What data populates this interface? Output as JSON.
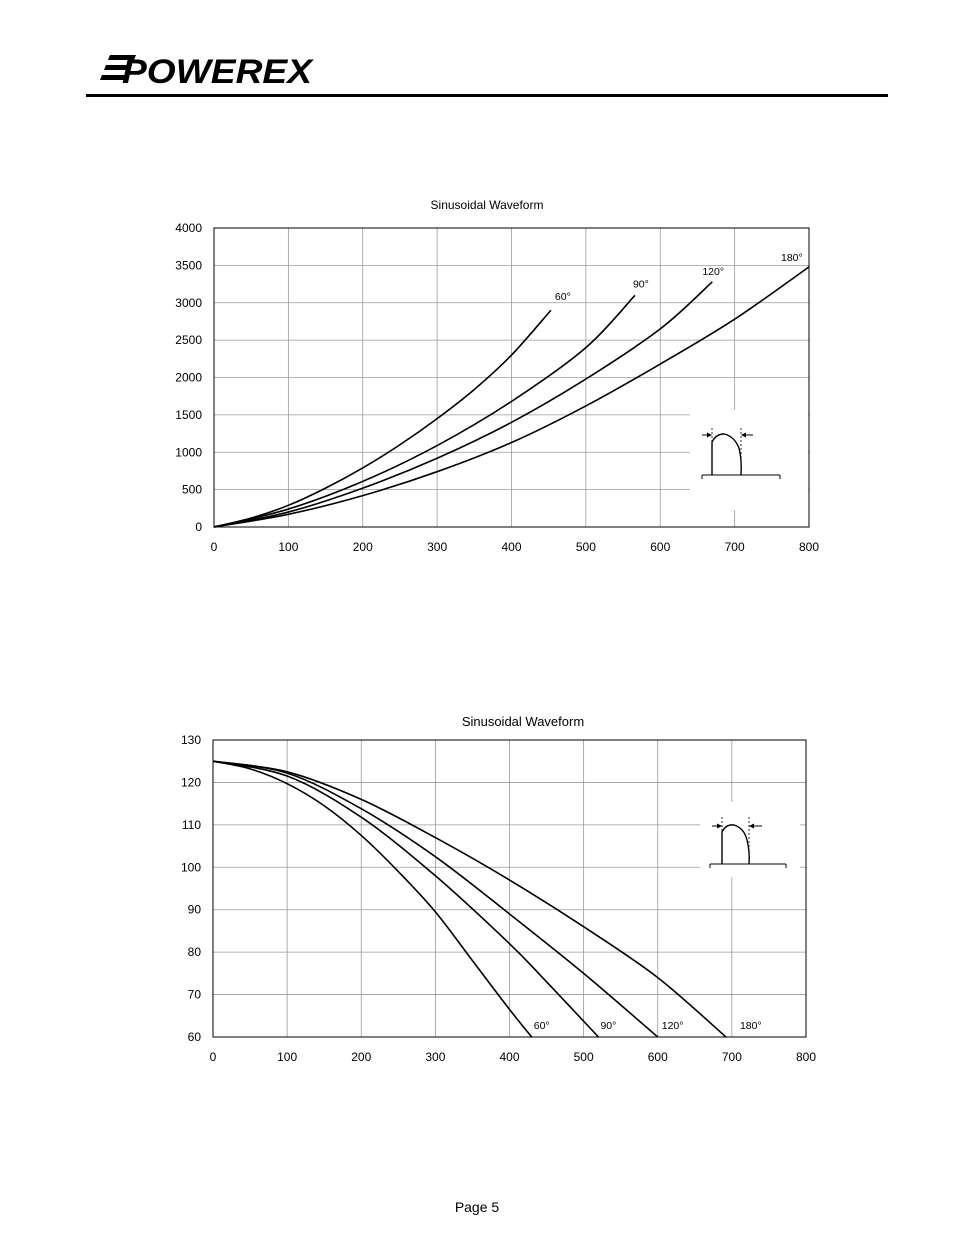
{
  "header": {
    "brand": "POWEREX"
  },
  "footer": {
    "page_label": "Page 5"
  },
  "chart_data": [
    {
      "type": "line",
      "title": "Sinusoidal Waveform",
      "xlabel": "",
      "ylabel": "",
      "xlim": [
        0,
        800
      ],
      "ylim": [
        0,
        4000
      ],
      "xticks": [
        0,
        100,
        200,
        300,
        400,
        500,
        600,
        700,
        800
      ],
      "yticks": [
        0,
        500,
        1000,
        1500,
        2000,
        2500,
        3000,
        3500,
        4000
      ],
      "grid": true,
      "series": [
        {
          "name": "60°",
          "x": [
            0,
            50,
            100,
            150,
            200,
            250,
            300,
            350,
            400,
            453
          ],
          "y": [
            0,
            120,
            290,
            520,
            790,
            1100,
            1450,
            1840,
            2300,
            2900
          ]
        },
        {
          "name": "90°",
          "x": [
            0,
            100,
            200,
            300,
            400,
            500,
            566
          ],
          "y": [
            0,
            240,
            610,
            1090,
            1680,
            2400,
            3100
          ]
        },
        {
          "name": "120°",
          "x": [
            0,
            100,
            200,
            300,
            400,
            500,
            600,
            670
          ],
          "y": [
            0,
            200,
            520,
            920,
            1400,
            1980,
            2650,
            3280
          ]
        },
        {
          "name": "180°",
          "x": [
            0,
            100,
            200,
            300,
            400,
            500,
            600,
            700,
            800
          ],
          "y": [
            0,
            170,
            420,
            740,
            1130,
            1620,
            2180,
            2780,
            3480
          ]
        }
      ]
    },
    {
      "type": "line",
      "title": "Sinusoidal Waveform",
      "xlabel": "",
      "ylabel": "",
      "xlim": [
        0,
        800
      ],
      "ylim": [
        60,
        130
      ],
      "xticks": [
        0,
        100,
        200,
        300,
        400,
        500,
        600,
        700,
        800
      ],
      "yticks": [
        60,
        70,
        80,
        90,
        100,
        110,
        120,
        130
      ],
      "grid": true,
      "series": [
        {
          "name": "60°",
          "x": [
            0,
            50,
            100,
            150,
            200,
            250,
            300,
            350,
            400,
            430
          ],
          "y": [
            125,
            123.2,
            119.7,
            114.5,
            107.5,
            99,
            89.5,
            78,
            66.5,
            60
          ]
        },
        {
          "name": "90°",
          "x": [
            0,
            100,
            200,
            300,
            400,
            450,
            520
          ],
          "y": [
            125,
            121.5,
            111.8,
            98,
            82,
            73,
            60
          ]
        },
        {
          "name": "120°",
          "x": [
            0,
            100,
            200,
            300,
            400,
            500,
            600
          ],
          "y": [
            125,
            122.2,
            113.8,
            102.5,
            89,
            75,
            60
          ]
        },
        {
          "name": "180°",
          "x": [
            0,
            100,
            200,
            300,
            400,
            500,
            600,
            692
          ],
          "y": [
            125,
            122.5,
            116,
            107,
            97,
            86,
            74,
            60
          ]
        }
      ]
    }
  ]
}
